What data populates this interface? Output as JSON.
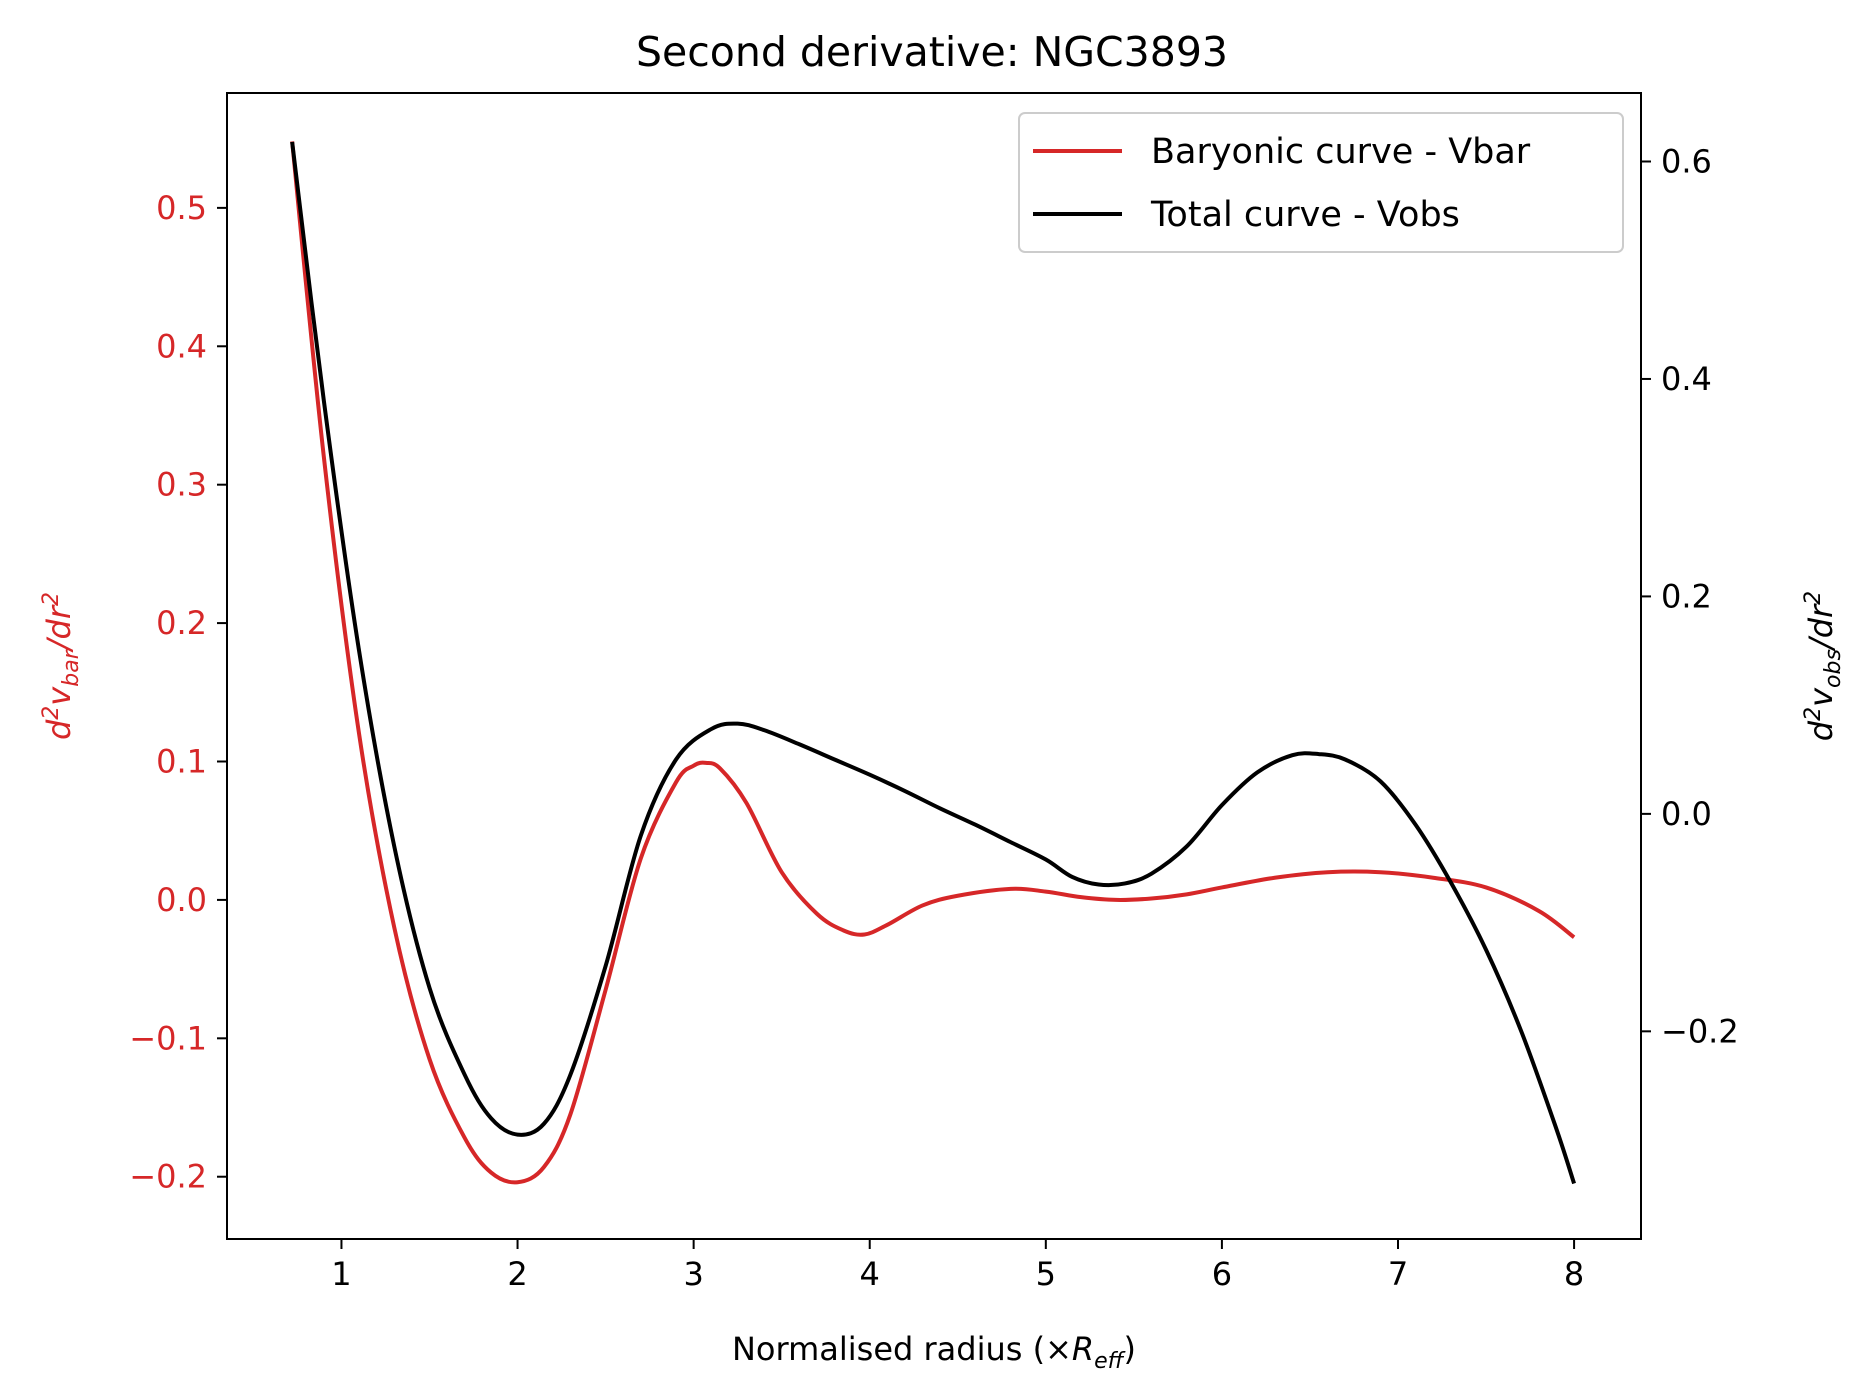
{
  "chart_data": {
    "type": "line",
    "title": "Second derivative: NGC3893",
    "xlabel": {
      "main": "Normalised radius (×",
      "italic": "R",
      "sub": "eff",
      "close": ")"
    },
    "ylabel_left": {
      "d": "d",
      "sup": "2",
      "v": "v",
      "sub": "bar",
      "rest": "/dr",
      "sup2": "2"
    },
    "ylabel_right": {
      "d": "d",
      "sup": "2",
      "v": "v",
      "sub": "obs",
      "rest": "/dr",
      "sup2": "2"
    },
    "xlim": [
      0.35,
      8.38
    ],
    "ylim_left": [
      -0.245,
      0.583
    ],
    "ylim_right": [
      -0.391,
      0.663
    ],
    "x_ticks": [
      "1",
      "2",
      "3",
      "4",
      "5",
      "6",
      "7",
      "8"
    ],
    "y_ticks_left": [
      "−0.2",
      "−0.1",
      "0.0",
      "0.1",
      "0.2",
      "0.3",
      "0.4",
      "0.5"
    ],
    "y_ticks_right": [
      "−0.2",
      "0.0",
      "0.2",
      "0.4",
      "0.6"
    ],
    "legend_position": "top-right",
    "series": [
      {
        "name": "Baryonic curve - Vbar",
        "axis": "left",
        "color": "#d62728",
        "x": [
          0.72,
          0.9,
          1.1,
          1.3,
          1.5,
          1.7,
          1.85,
          2.0,
          2.15,
          2.3,
          2.5,
          2.7,
          2.9,
          3.0,
          3.07,
          3.15,
          3.3,
          3.5,
          3.7,
          3.85,
          3.97,
          4.1,
          4.3,
          4.5,
          4.8,
          5.0,
          5.2,
          5.4,
          5.6,
          5.8,
          6.0,
          6.3,
          6.6,
          6.9,
          7.2,
          7.5,
          7.8,
          8.0
        ],
        "y": [
          0.548,
          0.32,
          0.12,
          -0.02,
          -0.115,
          -0.172,
          -0.197,
          -0.204,
          -0.193,
          -0.155,
          -0.065,
          0.03,
          0.085,
          0.097,
          0.099,
          0.095,
          0.07,
          0.02,
          -0.01,
          -0.022,
          -0.025,
          -0.018,
          -0.004,
          0.003,
          0.008,
          0.006,
          0.002,
          0.0,
          0.001,
          0.004,
          0.009,
          0.016,
          0.02,
          0.02,
          0.016,
          0.009,
          -0.008,
          -0.027
        ]
      },
      {
        "name": "Total curve - Vobs",
        "axis": "right",
        "color": "#000000",
        "x": [
          0.72,
          0.9,
          1.1,
          1.3,
          1.5,
          1.7,
          1.85,
          2.0,
          2.15,
          2.3,
          2.5,
          2.7,
          2.9,
          3.1,
          3.25,
          3.4,
          3.6,
          3.8,
          4.0,
          4.2,
          4.4,
          4.6,
          4.8,
          5.0,
          5.15,
          5.3,
          5.45,
          5.6,
          5.8,
          6.0,
          6.2,
          6.4,
          6.55,
          6.7,
          6.9,
          7.1,
          7.3,
          7.5,
          7.7,
          7.9,
          8.0
        ],
        "y": [
          0.618,
          0.38,
          0.15,
          -0.03,
          -0.16,
          -0.24,
          -0.28,
          -0.295,
          -0.285,
          -0.24,
          -0.14,
          -0.02,
          0.05,
          0.078,
          0.083,
          0.077,
          0.064,
          0.05,
          0.036,
          0.021,
          0.005,
          -0.01,
          -0.026,
          -0.042,
          -0.058,
          -0.065,
          -0.064,
          -0.055,
          -0.03,
          0.008,
          0.038,
          0.054,
          0.055,
          0.05,
          0.03,
          -0.01,
          -0.063,
          -0.125,
          -0.2,
          -0.29,
          -0.34
        ]
      }
    ]
  }
}
